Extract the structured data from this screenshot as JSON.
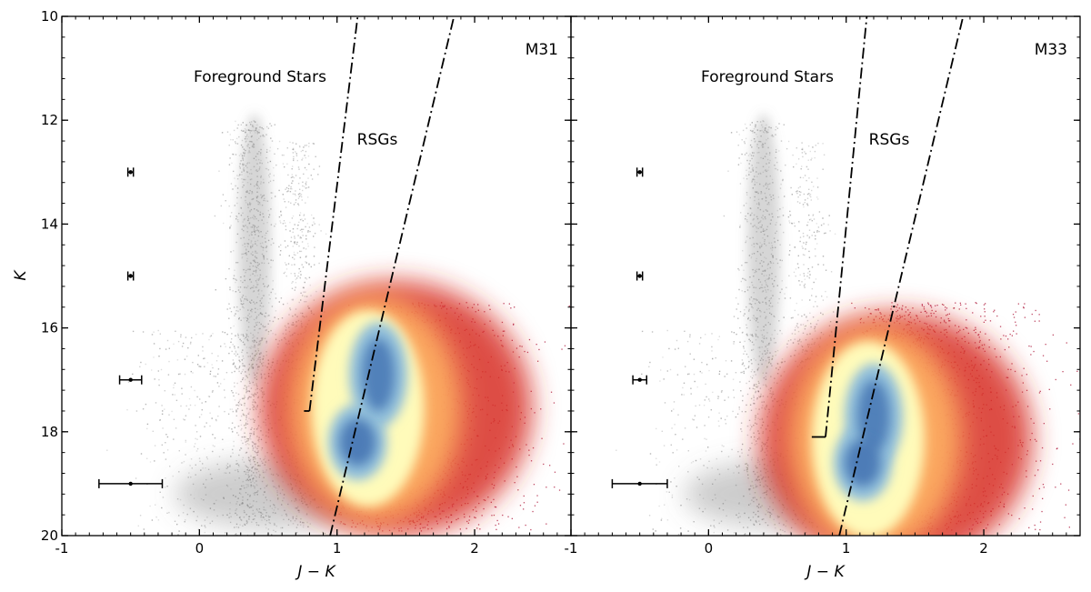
{
  "chart_data": [
    {
      "type": "scatter",
      "panel_label": "M31",
      "xlabel": "J − K",
      "ylabel": "K",
      "xlim": [
        -1,
        2.7
      ],
      "ylim": [
        20,
        10
      ],
      "y_inverted": true,
      "x_ticks": [
        -1,
        0,
        1,
        2
      ],
      "x_tick_labels": [
        "-1",
        "0",
        "1",
        "2"
      ],
      "y_ticks": [
        10,
        12,
        14,
        16,
        18,
        20
      ],
      "y_tick_labels": [
        "10",
        "12",
        "14",
        "16",
        "18",
        "20"
      ],
      "annotations": [
        "Foreground Stars",
        "RSGs"
      ],
      "boundary_lines": [
        {
          "name": "foreground",
          "style": "dash-dot",
          "points": [
            [
              0.8,
              17.6
            ],
            [
              1.15,
              10.0
            ]
          ],
          "base": [
            [
              0.76,
              17.6
            ],
            [
              0.8,
              17.6
            ]
          ]
        },
        {
          "name": "rsg",
          "style": "dash-dot",
          "points": [
            [
              0.95,
              20.0
            ],
            [
              1.85,
              10.0
            ]
          ]
        }
      ],
      "error_bars": [
        {
          "x": -0.5,
          "y": 13,
          "xerr": 0.02
        },
        {
          "x": -0.5,
          "y": 15,
          "xerr": 0.02
        },
        {
          "x": -0.5,
          "y": 17,
          "xerr": 0.08
        },
        {
          "x": -0.5,
          "y": 19,
          "xerr": 0.23
        }
      ],
      "density_peaks": [
        {
          "x": 1.3,
          "y": 16.9,
          "level": "high"
        },
        {
          "x": 1.15,
          "y": 18.2,
          "level": "high"
        }
      ],
      "colors": {
        "foreground": "#9a9a9a",
        "low": "#a50026",
        "mid": "#fdae61",
        "high": "#4575b4"
      }
    },
    {
      "type": "scatter",
      "panel_label": "M33",
      "xlabel": "J − K",
      "ylabel": "K",
      "xlim": [
        -1,
        2.7
      ],
      "ylim": [
        20,
        10
      ],
      "y_inverted": true,
      "x_ticks": [
        -1,
        0,
        1,
        2
      ],
      "x_tick_labels": [
        "-1",
        "0",
        "1",
        "2"
      ],
      "y_ticks": [
        10,
        12,
        14,
        16,
        18,
        20
      ],
      "y_tick_labels": [
        "10",
        "12",
        "14",
        "16",
        "18",
        "20"
      ],
      "annotations": [
        "Foreground Stars",
        "RSGs"
      ],
      "boundary_lines": [
        {
          "name": "foreground",
          "style": "dash-dot",
          "points": [
            [
              0.85,
              18.1
            ],
            [
              1.15,
              10.0
            ]
          ],
          "base": [
            [
              0.75,
              18.1
            ],
            [
              0.85,
              18.1
            ]
          ]
        },
        {
          "name": "rsg",
          "style": "dash-dot",
          "points": [
            [
              0.95,
              20.0
            ],
            [
              1.85,
              10.0
            ]
          ]
        }
      ],
      "error_bars": [
        {
          "x": -0.5,
          "y": 13,
          "xerr": 0.02
        },
        {
          "x": -0.5,
          "y": 15,
          "xerr": 0.02
        },
        {
          "x": -0.5,
          "y": 17,
          "xerr": 0.05
        },
        {
          "x": -0.5,
          "y": 19,
          "xerr": 0.2
        }
      ],
      "density_peaks": [
        {
          "x": 1.2,
          "y": 17.7,
          "level": "high"
        },
        {
          "x": 1.12,
          "y": 18.6,
          "level": "high"
        }
      ],
      "colors": {
        "foreground": "#9a9a9a",
        "low": "#a50026",
        "mid": "#fdae61",
        "high": "#4575b4"
      }
    }
  ]
}
